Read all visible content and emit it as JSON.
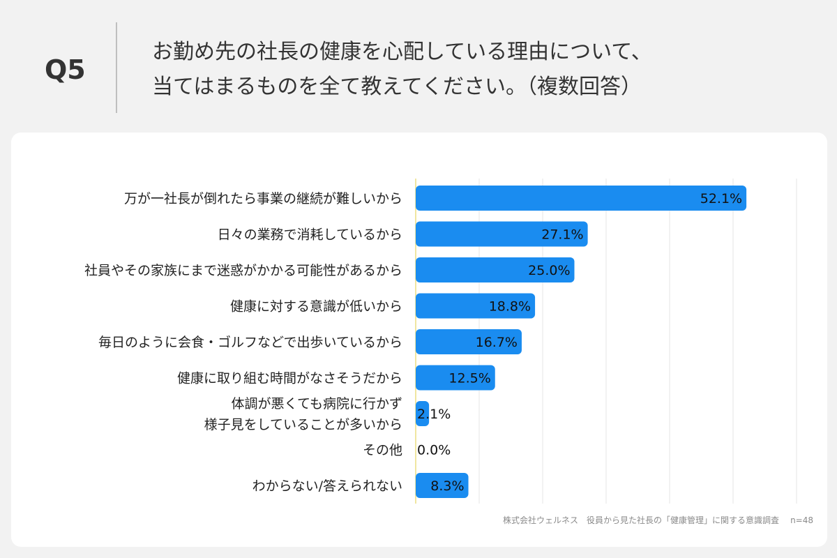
{
  "header": {
    "question_number": "Q5",
    "question_line1": "お勤め先の社長の健康を心配している理由について、",
    "question_line2": "当てはまるものを全て教えてください。（複数回答）"
  },
  "chart_data": {
    "type": "bar",
    "orientation": "horizontal",
    "categories": [
      [
        "万が一社長が倒れたら事業の継続が難しいから"
      ],
      [
        "日々の業務で消耗しているから"
      ],
      [
        "社員やその家族にまで迷惑がかかる可能性があるから"
      ],
      [
        "健康に対する意識が低いから"
      ],
      [
        "毎日のように会食・ゴルフなどで出歩いているから"
      ],
      [
        "健康に取り組む時間がなさそうだから"
      ],
      [
        "体調が悪くても病院に行かず",
        "様子見をしていることが多いから"
      ],
      [
        "その他"
      ],
      [
        "わからない/答えられない"
      ]
    ],
    "values": [
      52.1,
      27.1,
      25.0,
      18.8,
      16.7,
      12.5,
      2.1,
      0.0,
      8.3
    ],
    "value_labels": [
      "52.1%",
      "27.1%",
      "25.0%",
      "18.8%",
      "16.7%",
      "12.5%",
      "2.1%",
      "0.0%",
      "8.3%"
    ],
    "xlim": [
      0,
      60
    ],
    "grid": true,
    "bar_color": "#1a8cf0",
    "axis_color": "#f0e6a0",
    "grid_color": "#e6e6e6"
  },
  "footer": {
    "source": "株式会社ウェルネス　役員から見た社長の「健康管理」に関する意識調査",
    "sample_size": "n=48"
  }
}
